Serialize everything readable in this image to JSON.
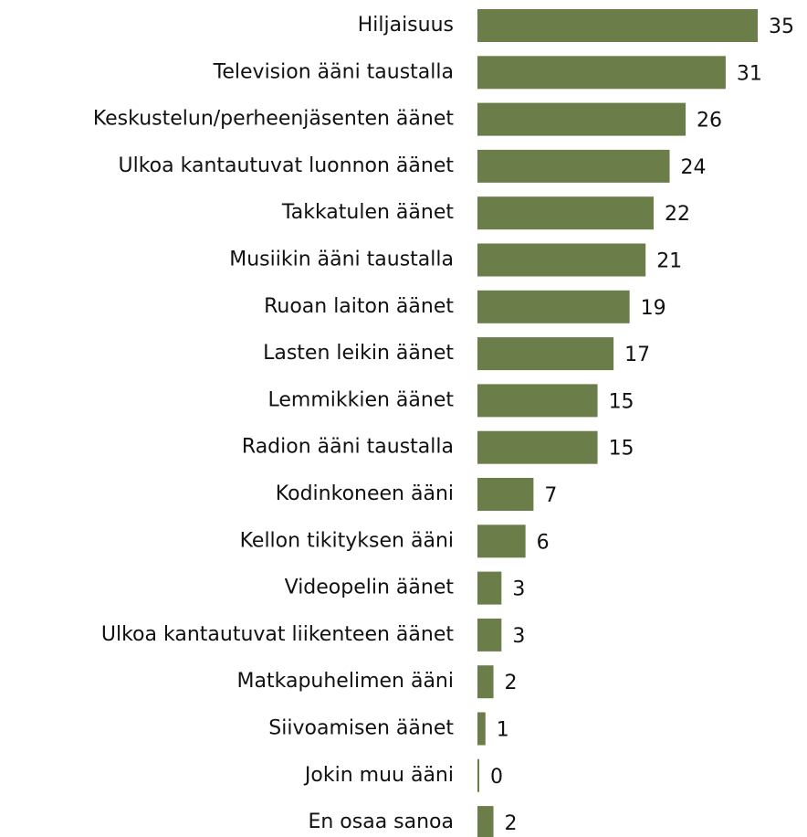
{
  "chart_data": {
    "type": "barh",
    "categories": [
      "Hiljaisuus",
      "Television ääni taustalla",
      "Keskustelun/perheenjäsenten äänet",
      "Ulkoa kantautuvat luonnon äänet",
      "Takkatulen äänet",
      "Musiikin ääni taustalla",
      "Ruoan laiton äänet",
      "Lasten leikin äänet",
      "Lemmikkien äänet",
      "Radion ääni taustalla",
      "Kodinkoneen ääni",
      "Kellon tikityksen ääni",
      "Videopelin äänet",
      "Ulkoa kantautuvat liikenteen äänet",
      "Matkapuhelimen ääni",
      "Siivoamisen äänet",
      "Jokin muu ääni",
      "En osaa sanoa"
    ],
    "values": [
      35,
      31,
      26,
      24,
      22,
      21,
      19,
      17,
      15,
      15,
      7,
      6,
      3,
      3,
      2,
      1,
      0,
      2
    ],
    "color": "#6b7d48"
  }
}
